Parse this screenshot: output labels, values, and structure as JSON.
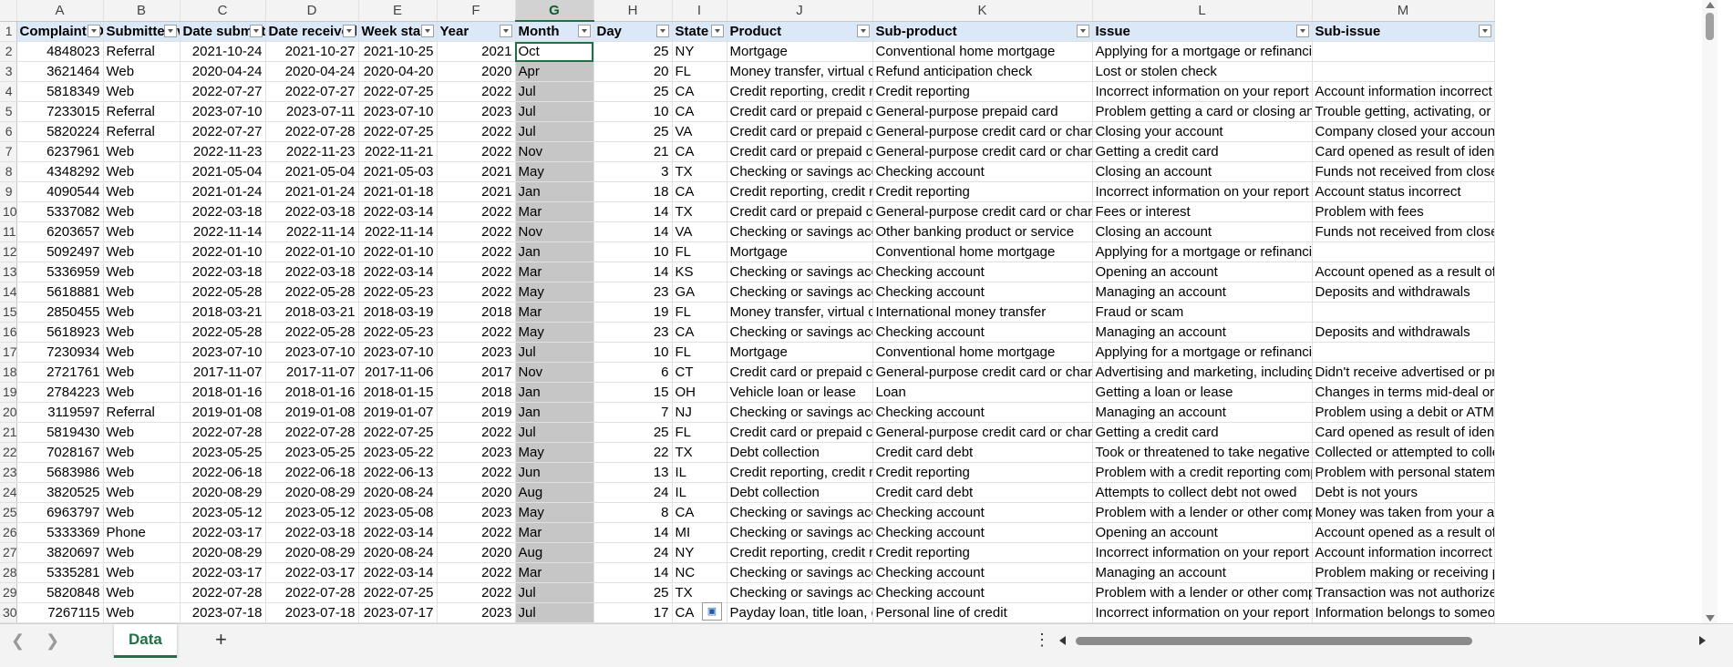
{
  "columns": [
    "A",
    "B",
    "C",
    "D",
    "E",
    "F",
    "G",
    "H",
    "I",
    "J",
    "K",
    "L",
    "M"
  ],
  "selected_column": "G",
  "headers": [
    "Complaint ID",
    "Submitted via",
    "Date submitted",
    "Date received",
    "Week start",
    "Year",
    "Month",
    "Day",
    "State",
    "Product",
    "Sub-product",
    "Issue",
    "Sub-issue"
  ],
  "rows": [
    [
      "4848023",
      "Referral",
      "2021-10-24",
      "2021-10-27",
      "2021-10-25",
      "2021",
      "Oct",
      "25",
      "NY",
      "Mortgage",
      "Conventional home mortgage",
      "Applying for a mortgage or refinancing an existing mortgage",
      ""
    ],
    [
      "3621464",
      "Web",
      "2020-04-24",
      "2020-04-24",
      "2020-04-20",
      "2020",
      "Apr",
      "20",
      "FL",
      "Money transfer, virtual currency, or money service",
      "Refund anticipation check",
      "Lost or stolen check",
      ""
    ],
    [
      "5818349",
      "Web",
      "2022-07-27",
      "2022-07-27",
      "2022-07-25",
      "2022",
      "Jul",
      "25",
      "CA",
      "Credit reporting, credit repair services, or other personal consumer reports",
      "Credit reporting",
      "Incorrect information on your report",
      "Account information incorrect"
    ],
    [
      "7233015",
      "Referral",
      "2023-07-10",
      "2023-07-11",
      "2023-07-10",
      "2023",
      "Jul",
      "10",
      "CA",
      "Credit card or prepaid card",
      "General-purpose prepaid card",
      "Problem getting a card or closing an account",
      "Trouble getting, activating, or registering a card"
    ],
    [
      "5820224",
      "Referral",
      "2022-07-27",
      "2022-07-28",
      "2022-07-25",
      "2022",
      "Jul",
      "25",
      "VA",
      "Credit card or prepaid card",
      "General-purpose credit card or charge card",
      "Closing your account",
      "Company closed your account"
    ],
    [
      "6237961",
      "Web",
      "2022-11-23",
      "2022-11-23",
      "2022-11-21",
      "2022",
      "Nov",
      "21",
      "CA",
      "Credit card or prepaid card",
      "General-purpose credit card or charge card",
      "Getting a credit card",
      "Card opened as result of identity theft or fraud"
    ],
    [
      "4348292",
      "Web",
      "2021-05-04",
      "2021-05-04",
      "2021-05-03",
      "2021",
      "May",
      "3",
      "TX",
      "Checking or savings account",
      "Checking account",
      "Closing an account",
      "Funds not received from closed account"
    ],
    [
      "4090544",
      "Web",
      "2021-01-24",
      "2021-01-24",
      "2021-01-18",
      "2021",
      "Jan",
      "18",
      "CA",
      "Credit reporting, credit repair services, or other personal consumer reports",
      "Credit reporting",
      "Incorrect information on your report",
      "Account status incorrect"
    ],
    [
      "5337082",
      "Web",
      "2022-03-18",
      "2022-03-18",
      "2022-03-14",
      "2022",
      "Mar",
      "14",
      "TX",
      "Credit card or prepaid card",
      "General-purpose credit card or charge card",
      "Fees or interest",
      "Problem with fees"
    ],
    [
      "6203657",
      "Web",
      "2022-11-14",
      "2022-11-14",
      "2022-11-14",
      "2022",
      "Nov",
      "14",
      "VA",
      "Checking or savings account",
      "Other banking product or service",
      "Closing an account",
      "Funds not received from closed account"
    ],
    [
      "5092497",
      "Web",
      "2022-01-10",
      "2022-01-10",
      "2022-01-10",
      "2022",
      "Jan",
      "10",
      "FL",
      "Mortgage",
      "Conventional home mortgage",
      "Applying for a mortgage or refinancing an existing mortgage",
      ""
    ],
    [
      "5336959",
      "Web",
      "2022-03-18",
      "2022-03-18",
      "2022-03-14",
      "2022",
      "Mar",
      "14",
      "KS",
      "Checking or savings account",
      "Checking account",
      "Opening an account",
      "Account opened as a result of fraud"
    ],
    [
      "5618881",
      "Web",
      "2022-05-28",
      "2022-05-28",
      "2022-05-23",
      "2022",
      "May",
      "23",
      "GA",
      "Checking or savings account",
      "Checking account",
      "Managing an account",
      "Deposits and withdrawals"
    ],
    [
      "2850455",
      "Web",
      "2018-03-21",
      "2018-03-21",
      "2018-03-19",
      "2018",
      "Mar",
      "19",
      "FL",
      "Money transfer, virtual currency, or money service",
      "International money transfer",
      "Fraud or scam",
      ""
    ],
    [
      "5618923",
      "Web",
      "2022-05-28",
      "2022-05-28",
      "2022-05-23",
      "2022",
      "May",
      "23",
      "CA",
      "Checking or savings account",
      "Checking account",
      "Managing an account",
      "Deposits and withdrawals"
    ],
    [
      "7230934",
      "Web",
      "2023-07-10",
      "2023-07-10",
      "2023-07-10",
      "2023",
      "Jul",
      "10",
      "FL",
      "Mortgage",
      "Conventional home mortgage",
      "Applying for a mortgage or refinancing an existing mortgage",
      ""
    ],
    [
      "2721761",
      "Web",
      "2017-11-07",
      "2017-11-07",
      "2017-11-06",
      "2017",
      "Nov",
      "6",
      "CT",
      "Credit card or prepaid card",
      "General-purpose credit card or charge card",
      "Advertising and marketing, including promotional offers",
      "Didn't receive advertised or promotional terms"
    ],
    [
      "2784223",
      "Web",
      "2018-01-16",
      "2018-01-16",
      "2018-01-15",
      "2018",
      "Jan",
      "15",
      "OH",
      "Vehicle loan or lease",
      "Loan",
      "Getting a loan or lease",
      "Changes in terms mid-deal or after closing"
    ],
    [
      "3119597",
      "Referral",
      "2019-01-08",
      "2019-01-08",
      "2019-01-07",
      "2019",
      "Jan",
      "7",
      "NJ",
      "Checking or savings account",
      "Checking account",
      "Managing an account",
      "Problem using a debit or ATM card"
    ],
    [
      "5819430",
      "Web",
      "2022-07-28",
      "2022-07-28",
      "2022-07-25",
      "2022",
      "Jul",
      "25",
      "FL",
      "Credit card or prepaid card",
      "General-purpose credit card or charge card",
      "Getting a credit card",
      "Card opened as result of identity theft or fraud"
    ],
    [
      "7028167",
      "Web",
      "2023-05-25",
      "2023-05-25",
      "2023-05-22",
      "2023",
      "May",
      "22",
      "TX",
      "Debt collection",
      "Credit card debt",
      "Took or threatened to take negative or legal action",
      "Collected or attempted to collect exempt funds"
    ],
    [
      "5683986",
      "Web",
      "2022-06-18",
      "2022-06-18",
      "2022-06-13",
      "2022",
      "Jun",
      "13",
      "IL",
      "Credit reporting, credit repair services, or other personal consumer reports",
      "Credit reporting",
      "Problem with a credit reporting company's investigation",
      "Problem with personal statement of dispute"
    ],
    [
      "3820525",
      "Web",
      "2020-08-29",
      "2020-08-29",
      "2020-08-24",
      "2020",
      "Aug",
      "24",
      "IL",
      "Debt collection",
      "Credit card debt",
      "Attempts to collect debt not owed",
      "Debt is not yours"
    ],
    [
      "6963797",
      "Web",
      "2023-05-12",
      "2023-05-12",
      "2023-05-08",
      "2023",
      "May",
      "8",
      "CA",
      "Checking or savings account",
      "Checking account",
      "Problem with a lender or other company charging your account",
      "Money was taken from your account"
    ],
    [
      "5333369",
      "Phone",
      "2022-03-17",
      "2022-03-18",
      "2022-03-14",
      "2022",
      "Mar",
      "14",
      "MI",
      "Checking or savings account",
      "Checking account",
      "Opening an account",
      "Account opened as a result of fraud"
    ],
    [
      "3820697",
      "Web",
      "2020-08-29",
      "2020-08-29",
      "2020-08-24",
      "2020",
      "Aug",
      "24",
      "NY",
      "Credit reporting, credit repair services, or other personal consumer reports",
      "Credit reporting",
      "Incorrect information on your report",
      "Account information incorrect"
    ],
    [
      "5335281",
      "Web",
      "2022-03-17",
      "2022-03-17",
      "2022-03-14",
      "2022",
      "Mar",
      "14",
      "NC",
      "Checking or savings account",
      "Checking account",
      "Managing an account",
      "Problem making or receiving payments"
    ],
    [
      "5820848",
      "Web",
      "2022-07-28",
      "2022-07-28",
      "2022-07-25",
      "2022",
      "Jul",
      "25",
      "TX",
      "Checking or savings account",
      "Checking account",
      "Problem with a lender or other company charging your account",
      "Transaction was not authorized"
    ],
    [
      "7267115",
      "Web",
      "2023-07-18",
      "2023-07-18",
      "2023-07-17",
      "2023",
      "Jul",
      "17",
      "CA",
      "Payday loan, title loan, or personal loan",
      "Personal line of credit",
      "Incorrect information on your report",
      "Information belongs to someone else"
    ]
  ],
  "sheet_tab": "Data",
  "add_sheet": "+",
  "menu": "⋮",
  "nav_prev": "❮",
  "nav_next": "❯",
  "paste_icon": "▣",
  "colors": {
    "accent": "#1e7145",
    "header_fill": "#dbe8f7",
    "selected_fill": "#c6c6c6"
  }
}
